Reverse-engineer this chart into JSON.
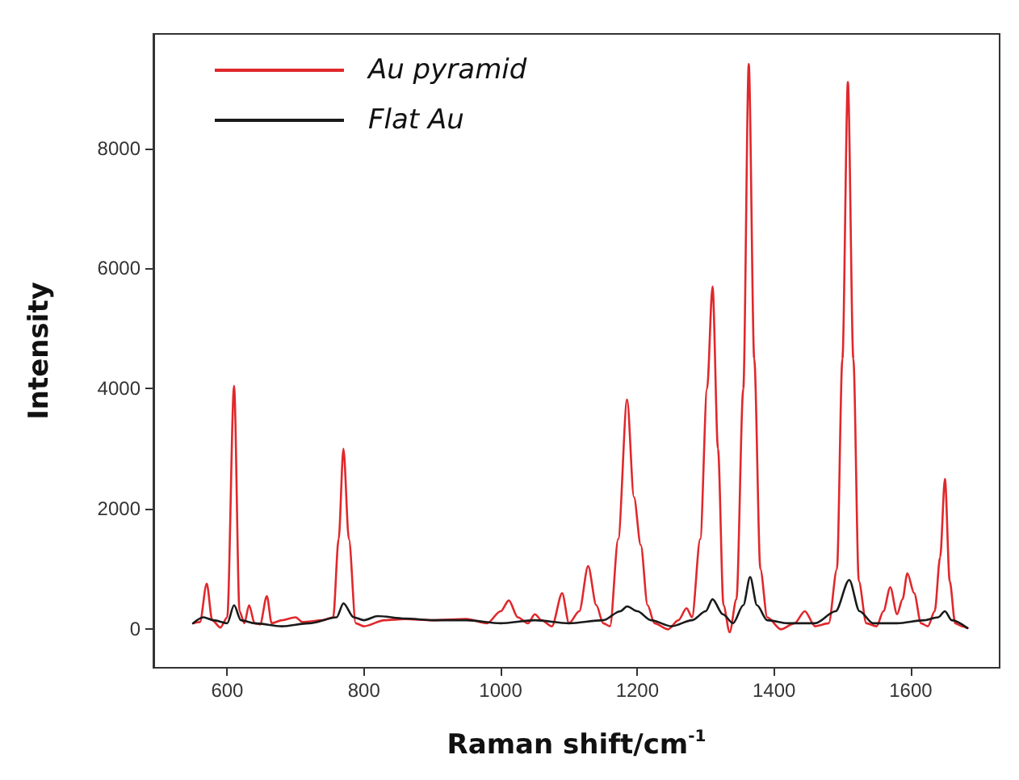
{
  "chart_data": {
    "type": "line",
    "xlabel": "Raman shift/cm$^{-1}$",
    "ylabel": "Intensity",
    "xlim": [
      492,
      1730
    ],
    "ylim": [
      -640,
      9900
    ],
    "xticks": [
      600,
      800,
      1000,
      1200,
      1400,
      1600
    ],
    "yticks": [
      0,
      2000,
      4000,
      6000,
      8000
    ],
    "grid": false,
    "legend": "top left",
    "marker": "none",
    "line_style": "solid",
    "series": [
      {
        "name": "Au pyramid",
        "color": "#e0282c",
        "x": [
          550,
          560,
          570,
          578,
          590,
          600,
          610,
          618,
          625,
          632,
          640,
          648,
          658,
          665,
          680,
          700,
          710,
          740,
          755,
          763,
          770,
          778,
          788,
          800,
          830,
          860,
          900,
          950,
          980,
          1000,
          1012,
          1025,
          1040,
          1050,
          1060,
          1075,
          1090,
          1100,
          1115,
          1128,
          1140,
          1150,
          1160,
          1172,
          1185,
          1195,
          1205,
          1215,
          1225,
          1245,
          1260,
          1272,
          1280,
          1292,
          1302,
          1310,
          1318,
          1326,
          1335,
          1345,
          1355,
          1363,
          1371,
          1380,
          1390,
          1410,
          1430,
          1445,
          1460,
          1480,
          1492,
          1500,
          1508,
          1516,
          1524,
          1535,
          1550,
          1560,
          1570,
          1580,
          1588,
          1595,
          1605,
          1615,
          1625,
          1635,
          1643,
          1650,
          1657,
          1665,
          1675,
          1683
        ],
        "values": [
          100,
          120,
          760,
          150,
          30,
          200,
          4050,
          300,
          100,
          400,
          100,
          80,
          550,
          100,
          150,
          200,
          120,
          150,
          200,
          1500,
          3000,
          1500,
          100,
          50,
          150,
          170,
          150,
          170,
          100,
          300,
          480,
          200,
          100,
          250,
          150,
          50,
          600,
          100,
          300,
          1050,
          400,
          100,
          50,
          1500,
          3820,
          2200,
          1400,
          400,
          100,
          0,
          150,
          350,
          200,
          1500,
          4000,
          5700,
          3000,
          400,
          -50,
          500,
          4000,
          9400,
          4500,
          1000,
          200,
          0,
          100,
          300,
          50,
          100,
          1000,
          4500,
          9100,
          4500,
          800,
          100,
          50,
          300,
          700,
          250,
          500,
          930,
          600,
          100,
          50,
          300,
          1200,
          2500,
          800,
          100,
          50,
          20
        ]
      },
      {
        "name": "Flat Au",
        "color": "#1a1a1a",
        "x": [
          550,
          565,
          580,
          600,
          610,
          620,
          640,
          680,
          720,
          760,
          770,
          785,
          800,
          820,
          860,
          900,
          950,
          1000,
          1050,
          1100,
          1150,
          1175,
          1185,
          1200,
          1220,
          1250,
          1280,
          1300,
          1310,
          1325,
          1340,
          1355,
          1365,
          1375,
          1390,
          1420,
          1460,
          1490,
          1510,
          1525,
          1545,
          1580,
          1620,
          1640,
          1650,
          1660,
          1683
        ],
        "values": [
          100,
          200,
          150,
          100,
          400,
          150,
          100,
          50,
          100,
          200,
          430,
          200,
          150,
          220,
          180,
          150,
          150,
          100,
          150,
          100,
          150,
          300,
          380,
          300,
          150,
          50,
          150,
          300,
          500,
          250,
          100,
          400,
          870,
          400,
          150,
          100,
          100,
          300,
          820,
          300,
          100,
          100,
          150,
          200,
          300,
          150,
          20
        ]
      }
    ]
  }
}
